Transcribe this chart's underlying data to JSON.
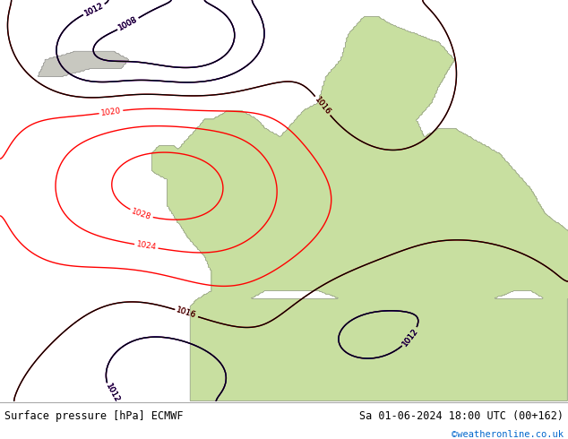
{
  "title_left": "Surface pressure [hPa] ECMWF",
  "title_right": "Sa 01-06-2024 18:00 UTC (00+162)",
  "copyright": "©weatheronline.co.uk",
  "fig_width": 6.34,
  "fig_height": 4.9,
  "dpi": 100,
  "land_color": "#c8dfa0",
  "ocean_color": "#dce8f0",
  "bottom_bg": "#f0f0f0",
  "text_color": "#000000",
  "link_color": "#0066cc"
}
